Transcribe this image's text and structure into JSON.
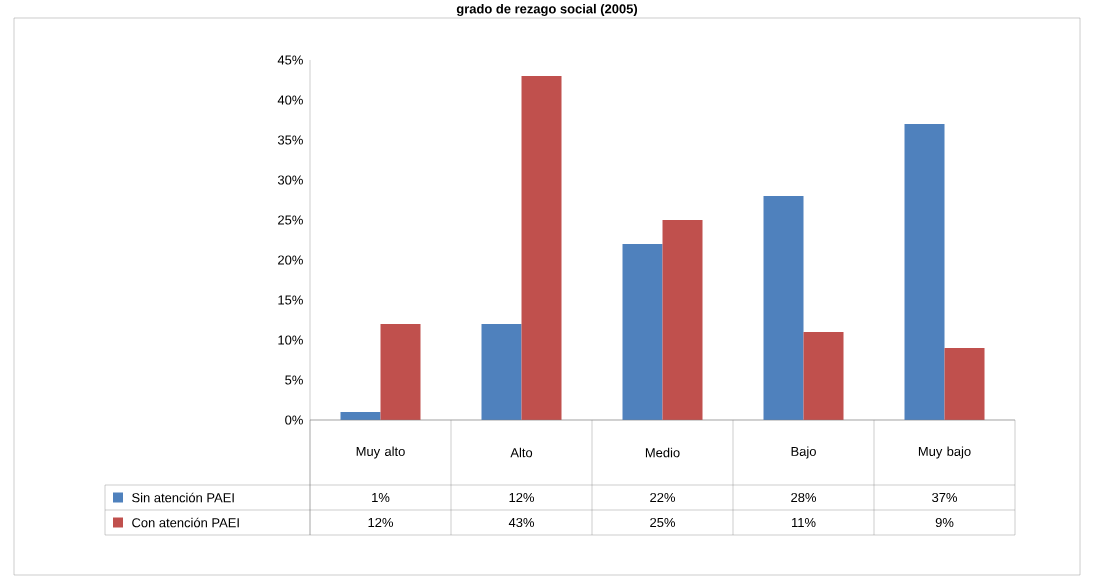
{
  "chart_data": {
    "type": "bar",
    "title": "grado de rezago social (2005)",
    "categories": [
      "Muy alto",
      "Alto",
      "Medio",
      "Bajo",
      "Muy bajo"
    ],
    "series": [
      {
        "name": "Sin atención PAEI",
        "color": "#4f81bd",
        "values": [
          1,
          12,
          22,
          28,
          37
        ],
        "value_labels": [
          "1%",
          "12%",
          "22%",
          "28%",
          "37%"
        ]
      },
      {
        "name": "Con atención PAEI",
        "color": "#c0504d",
        "values": [
          12,
          43,
          25,
          11,
          9
        ],
        "value_labels": [
          "12%",
          "43%",
          "25%",
          "11%",
          "9%"
        ]
      }
    ],
    "ylim": [
      0,
      45
    ],
    "yticks": [
      {
        "value": 0,
        "label": "0%"
      },
      {
        "value": 5,
        "label": "5%"
      },
      {
        "value": 10,
        "label": "10%"
      },
      {
        "value": 15,
        "label": "15%"
      },
      {
        "value": 20,
        "label": "20%"
      },
      {
        "value": 25,
        "label": "25%"
      },
      {
        "value": 30,
        "label": "30%"
      },
      {
        "value": 35,
        "label": "35%"
      },
      {
        "value": 40,
        "label": "40%"
      },
      {
        "value": 45,
        "label": "45%"
      }
    ],
    "grid": false,
    "legend": "bottom"
  }
}
